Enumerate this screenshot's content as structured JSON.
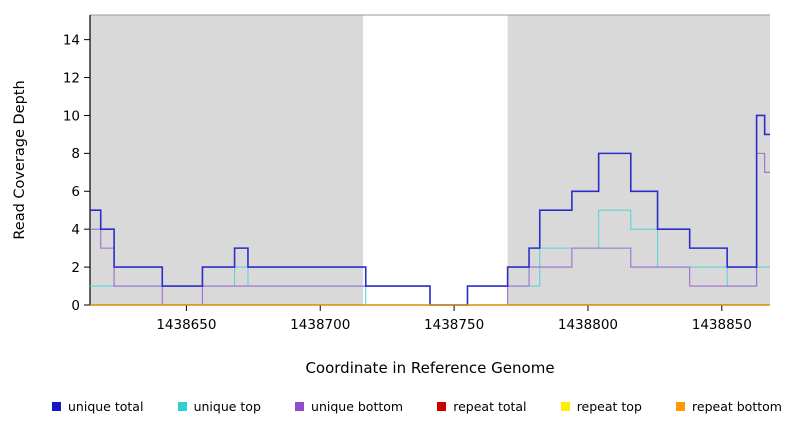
{
  "chart": {
    "ylabel": "Read Coverage Depth",
    "xlabel": "Coordinate in Reference Genome"
  },
  "chart_data": {
    "type": "line",
    "subtype": "step-coverage-plot",
    "title": "",
    "xlabel": "Coordinate in Reference Genome",
    "ylabel": "Read Coverage Depth",
    "xlim": [
      1438614,
      1438868
    ],
    "ylim": [
      0,
      15.3
    ],
    "xticks": [
      1438650,
      1438700,
      1438750,
      1438800,
      1438850
    ],
    "yticks": [
      0,
      2,
      4,
      6,
      8,
      10,
      12,
      14
    ],
    "grid": false,
    "legend_position": "bottom",
    "shade_color": "#d9d9d9",
    "shaded_regions": [
      [
        1438614,
        1438716
      ],
      [
        1438770,
        1438868
      ]
    ],
    "series": [
      {
        "name": "repeat total",
        "color": "#cc0000",
        "width": 1.1,
        "points": [
          [
            1438614,
            0
          ],
          [
            1438868,
            0
          ]
        ]
      },
      {
        "name": "repeat top",
        "color": "#ffee00",
        "width": 1.1,
        "points": [
          [
            1438614,
            0
          ],
          [
            1438868,
            0
          ]
        ]
      },
      {
        "name": "unique top",
        "color": "#5fd3d3",
        "width": 1.1,
        "points": [
          [
            1438614,
            1
          ],
          [
            1438668,
            2
          ],
          [
            1438673,
            1
          ],
          [
            1438717,
            0
          ],
          [
            1438755,
            1
          ],
          [
            1438782,
            3
          ],
          [
            1438804,
            5
          ],
          [
            1438816,
            4
          ],
          [
            1438826,
            2
          ],
          [
            1438852,
            1
          ],
          [
            1438863,
            2
          ],
          [
            1438868,
            2
          ]
        ]
      },
      {
        "name": "unique bottom",
        "color": "#9c6fd0",
        "width": 1.1,
        "points": [
          [
            1438614,
            4
          ],
          [
            1438618,
            3
          ],
          [
            1438623,
            1
          ],
          [
            1438641,
            0
          ],
          [
            1438656,
            1
          ],
          [
            1438717,
            1
          ],
          [
            1438741,
            0
          ],
          [
            1438770,
            1
          ],
          [
            1438778,
            2
          ],
          [
            1438794,
            3
          ],
          [
            1438816,
            2
          ],
          [
            1438838,
            1
          ],
          [
            1438863,
            8
          ],
          [
            1438866,
            7
          ],
          [
            1438868,
            7
          ]
        ]
      },
      {
        "name": "unique total",
        "color": "#2d2dcc",
        "width": 1.6,
        "points": [
          [
            1438614,
            5
          ],
          [
            1438618,
            4
          ],
          [
            1438623,
            2
          ],
          [
            1438641,
            1
          ],
          [
            1438656,
            2
          ],
          [
            1438668,
            3
          ],
          [
            1438673,
            2
          ],
          [
            1438717,
            1
          ],
          [
            1438741,
            0
          ],
          [
            1438755,
            1
          ],
          [
            1438770,
            2
          ],
          [
            1438778,
            3
          ],
          [
            1438782,
            5
          ],
          [
            1438794,
            6
          ],
          [
            1438804,
            8
          ],
          [
            1438816,
            6
          ],
          [
            1438826,
            4
          ],
          [
            1438838,
            3
          ],
          [
            1438852,
            2
          ],
          [
            1438863,
            10
          ],
          [
            1438866,
            9
          ],
          [
            1438868,
            9
          ]
        ]
      },
      {
        "name": "repeat bottom",
        "color": "#ff9900",
        "width": 1.3,
        "points": [
          [
            1438614,
            0
          ],
          [
            1438868,
            0
          ]
        ]
      }
    ]
  },
  "legend": {
    "items": [
      {
        "label": "unique total",
        "color": "#1515cc"
      },
      {
        "label": "unique top",
        "color": "#2fcfcf"
      },
      {
        "label": "unique bottom",
        "color": "#8f4fcc"
      },
      {
        "label": "repeat total",
        "color": "#cc0000"
      },
      {
        "label": "repeat top",
        "color": "#ffee00"
      },
      {
        "label": "repeat bottom",
        "color": "#ff9900"
      }
    ]
  }
}
